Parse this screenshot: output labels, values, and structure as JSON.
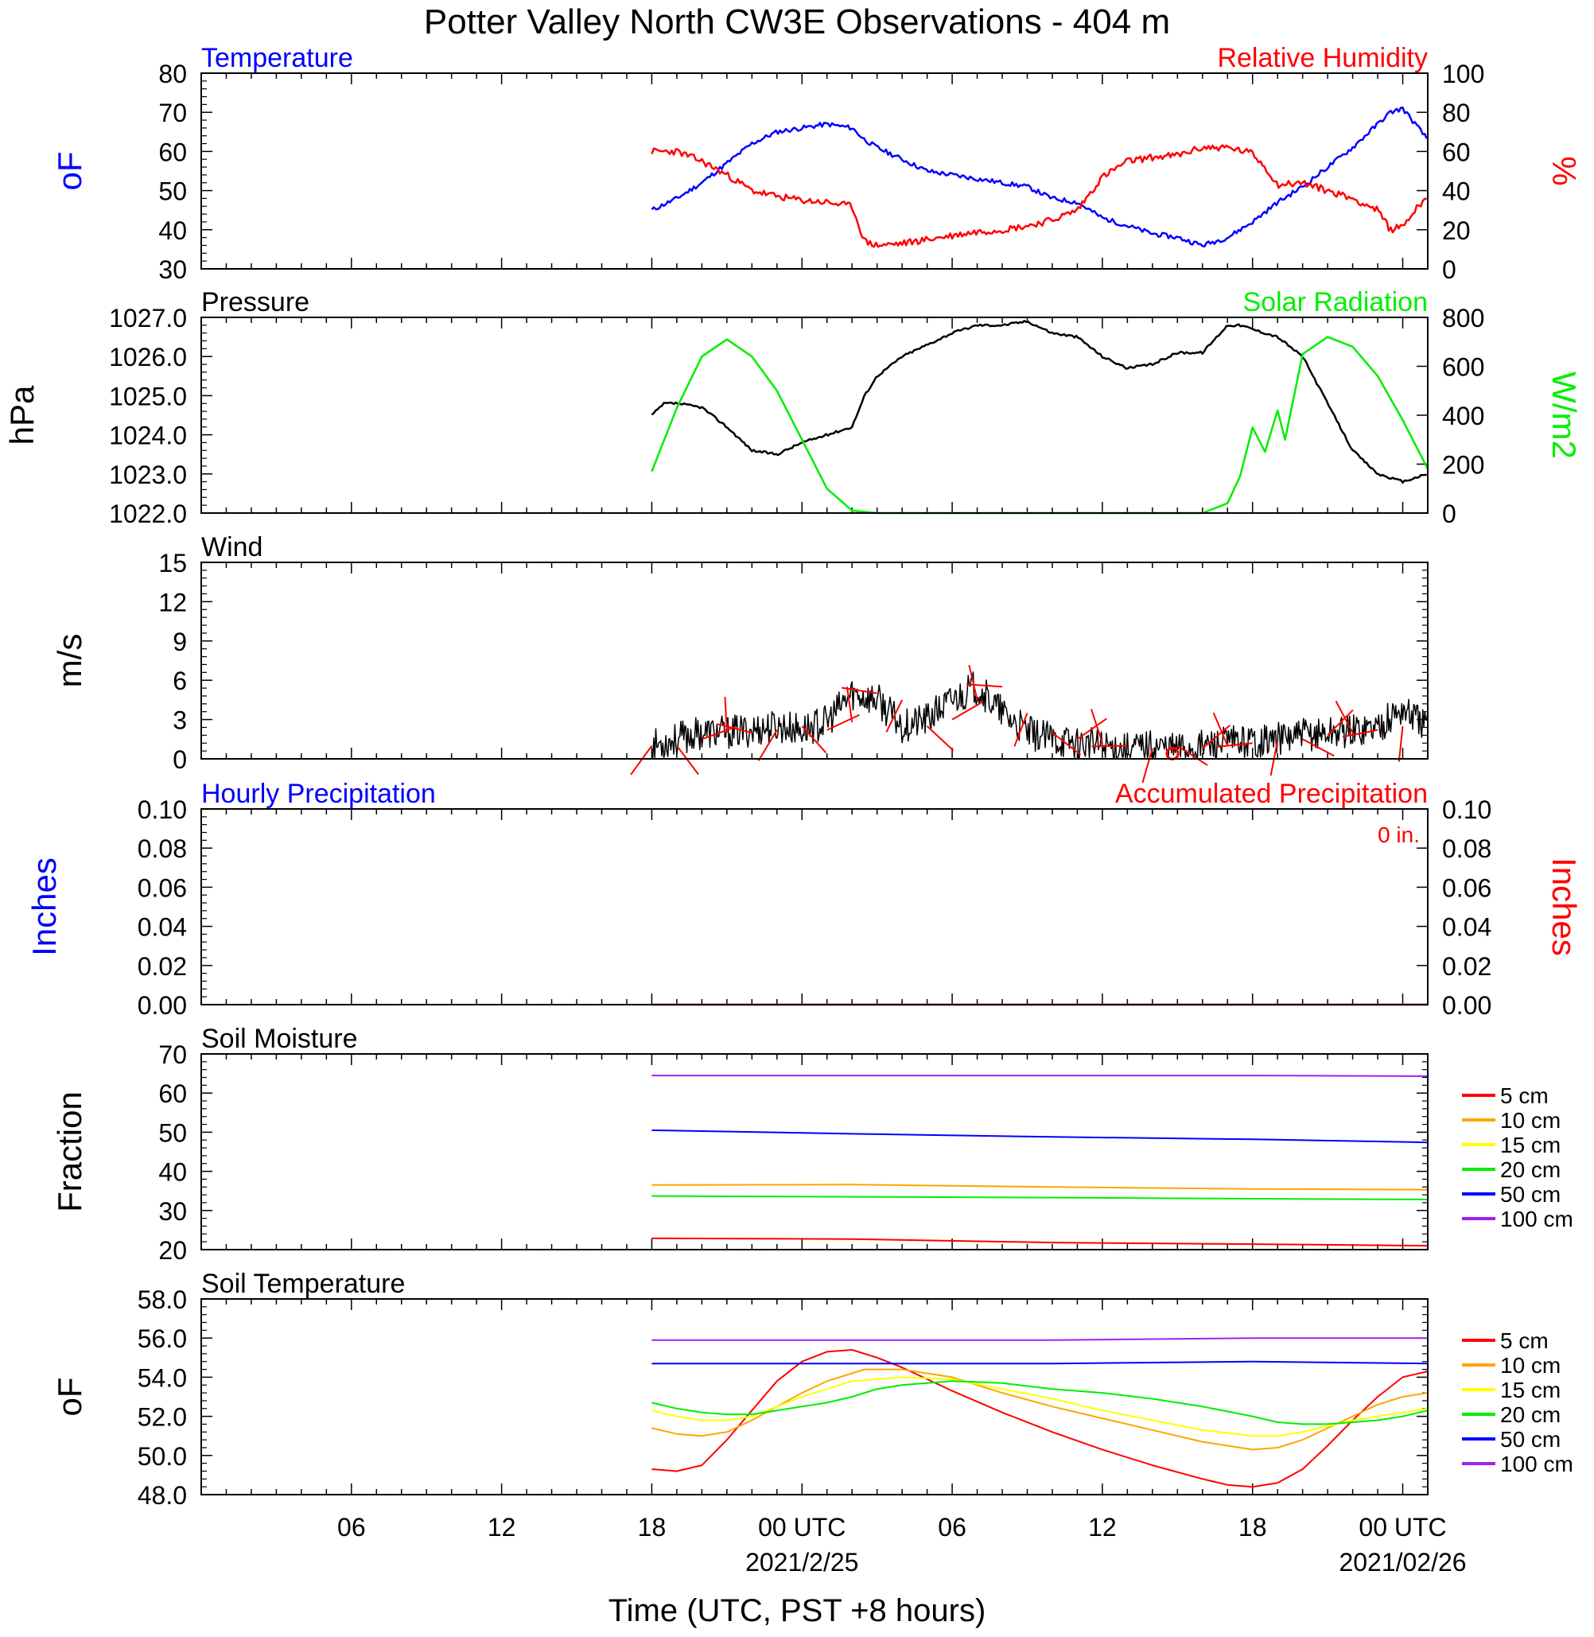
{
  "title": "Potter Valley North CW3E Observations - 404 m",
  "x_axis": {
    "label": "Time (UTC, PST +8 hours)",
    "tick_hours": [
      6,
      12,
      18,
      24,
      30,
      36,
      42,
      48
    ],
    "tick_labels": [
      "06",
      "12",
      "18",
      "00 UTC",
      "06",
      "12",
      "18",
      "00 UTC"
    ],
    "date_labels": [
      {
        "hour": 24,
        "text": "2021/2/25"
      },
      {
        "hour": 48,
        "text": "2021/02/26"
      }
    ],
    "range_hours": [
      0,
      49
    ]
  },
  "colors": {
    "temperature": "#0000ff",
    "humidity": "#ff0000",
    "pressure": "#000000",
    "solar": "#00ee00",
    "wind": "#000000",
    "barb": "#ff0000",
    "hourly_precip": "#0000ff",
    "accum_precip": "#ff0000"
  },
  "depth_colors": [
    "#ff0000",
    "#ffa500",
    "#ffff00",
    "#00ee00",
    "#0000ff",
    "#a020f0"
  ],
  "chart_data": [
    {
      "panel": "temperature_humidity",
      "type": "line",
      "left_title": "Temperature",
      "right_title": "Relative Humidity",
      "ylabel_left": "oF",
      "ylabel_right": "%",
      "ylim_left": [
        30,
        80
      ],
      "ylim_right": [
        0,
        100
      ],
      "yticks_left": [
        "30",
        "40",
        "50",
        "60",
        "70",
        "80"
      ],
      "yticks_right": [
        "0",
        "20",
        "40",
        "60",
        "80",
        "100"
      ],
      "series": [
        {
          "axis": "left",
          "x": [
            18,
            19,
            20,
            21,
            22,
            23,
            24,
            25,
            26,
            26.5,
            27,
            28,
            29,
            30,
            31,
            32,
            33,
            34,
            35,
            36,
            37,
            38,
            39,
            40,
            41,
            42,
            43,
            44,
            45,
            46,
            47,
            47.5,
            48,
            49
          ],
          "values": [
            45,
            48,
            52,
            57,
            62,
            65,
            66,
            67,
            66,
            63,
            61,
            58,
            55,
            54,
            53,
            52,
            51,
            48,
            47,
            43,
            41,
            39,
            38,
            36,
            38,
            42,
            47,
            51,
            56,
            61,
            67,
            70,
            71,
            63
          ]
        },
        {
          "axis": "right",
          "x": [
            18,
            19,
            20,
            21,
            22,
            23,
            24,
            25,
            26,
            26.5,
            27,
            28,
            29,
            30,
            31,
            32,
            33,
            34,
            35,
            36,
            37,
            38,
            39,
            40,
            41,
            42,
            42.5,
            43,
            44,
            45,
            46,
            47,
            47.5,
            48,
            49
          ],
          "values": [
            60,
            60,
            55,
            48,
            40,
            37,
            35,
            34,
            32,
            14,
            12,
            13,
            15,
            17,
            19,
            20,
            22,
            25,
            30,
            47,
            55,
            57,
            58,
            62,
            62,
            59,
            52,
            43,
            44,
            40,
            36,
            30,
            20,
            22,
            38
          ]
        }
      ]
    },
    {
      "panel": "pressure_solar",
      "type": "line",
      "left_title": "Pressure",
      "right_title": "Solar Radiation",
      "ylabel_left": "hPa",
      "ylabel_right": "W/m2",
      "ylim_left": [
        1022,
        1027
      ],
      "ylim_right": [
        0,
        800
      ],
      "yticks_left": [
        "1022.0",
        "1023.0",
        "1024.0",
        "1025.0",
        "1026.0",
        "1027.0"
      ],
      "yticks_right": [
        "0",
        "200",
        "400",
        "600",
        "800"
      ],
      "series": [
        {
          "axis": "left",
          "x": [
            18,
            18.5,
            19,
            20,
            21,
            22,
            23,
            24,
            25,
            26,
            26.5,
            27,
            28,
            29,
            30,
            31,
            32,
            33,
            34,
            35,
            36,
            37,
            38,
            39,
            40,
            41,
            41.5,
            42,
            43,
            44,
            45,
            46,
            47,
            48,
            49
          ],
          "values": [
            1024.5,
            1024.8,
            1024.8,
            1024.7,
            1024.2,
            1023.6,
            1023.5,
            1023.8,
            1024.0,
            1024.2,
            1025.0,
            1025.5,
            1026.0,
            1026.3,
            1026.6,
            1026.8,
            1026.8,
            1026.9,
            1026.6,
            1026.5,
            1026.0,
            1025.7,
            1025.8,
            1026.1,
            1026.1,
            1026.8,
            1026.8,
            1026.7,
            1026.5,
            1026.0,
            1024.8,
            1023.6,
            1023.0,
            1022.8,
            1023.0
          ]
        },
        {
          "axis": "right",
          "x": [
            18,
            19,
            20,
            21,
            22,
            23,
            24,
            25,
            26,
            27,
            27,
            40,
            41,
            41.5,
            42,
            42.5,
            43,
            43.3,
            44,
            45,
            46,
            47,
            48,
            49
          ],
          "values": [
            170,
            430,
            640,
            710,
            640,
            500,
            300,
            100,
            10,
            0,
            0,
            0,
            40,
            150,
            350,
            250,
            420,
            300,
            650,
            720,
            680,
            560,
            380,
            180
          ]
        }
      ]
    },
    {
      "panel": "wind",
      "type": "line",
      "left_title": "Wind",
      "ylabel_left": "m/s",
      "ylim_left": [
        0,
        15
      ],
      "yticks_left": [
        "0",
        "3",
        "6",
        "9",
        "12",
        "15"
      ],
      "series": [
        {
          "axis": "left",
          "x": [
            18,
            19,
            20,
            21,
            22,
            23,
            24,
            25,
            26,
            27,
            28,
            29,
            30,
            31,
            32,
            33,
            34,
            35,
            36,
            37,
            38,
            39,
            40,
            41,
            42,
            43,
            44,
            45,
            46,
            47,
            48,
            49
          ],
          "values": [
            1.0,
            1.5,
            2.0,
            2.0,
            2.2,
            2.5,
            2.2,
            2.8,
            5.0,
            4.5,
            2.5,
            3.0,
            4.5,
            5.5,
            3.5,
            2.0,
            1.5,
            1.2,
            1.0,
            0.8,
            1.0,
            0.8,
            1.0,
            1.2,
            1.4,
            1.5,
            1.8,
            2.0,
            2.2,
            2.5,
            3.8,
            2.5
          ]
        }
      ]
    },
    {
      "panel": "precipitation",
      "type": "line",
      "left_title": "Hourly Precipitation",
      "right_title": "Accumulated Precipitation",
      "accum_total": "0 in.",
      "ylabel_left": "Inches",
      "ylabel_right": "Inches",
      "ylim_left": [
        0,
        0.1
      ],
      "ylim_right": [
        0,
        0.1
      ],
      "yticks_left": [
        "0.00",
        "0.02",
        "0.04",
        "0.06",
        "0.08",
        "0.10"
      ],
      "yticks_right": [
        "0.00",
        "0.02",
        "0.04",
        "0.06",
        "0.08",
        "0.10"
      ],
      "series": [
        {
          "axis": "left",
          "x": [
            18,
            49
          ],
          "values": [
            0,
            0
          ]
        },
        {
          "axis": "right",
          "x": [
            18,
            49
          ],
          "values": [
            0,
            0
          ]
        }
      ]
    },
    {
      "panel": "soil_moisture",
      "type": "line",
      "left_title": "Soil Moisture",
      "ylabel_left": "Fraction",
      "ylim_left": [
        20,
        70
      ],
      "yticks_left": [
        "20",
        "30",
        "40",
        "50",
        "60",
        "70"
      ],
      "legend": [
        "5 cm",
        "10 cm",
        "15 cm",
        "20 cm",
        "50 cm",
        "100 cm"
      ],
      "series": [
        {
          "name": "5 cm",
          "axis": "left",
          "x": [
            18,
            26,
            34,
            42,
            49
          ],
          "values": [
            22.9,
            22.7,
            21.8,
            21.4,
            21.0
          ]
        },
        {
          "name": "10 cm",
          "axis": "left",
          "x": [
            18,
            26,
            34,
            42,
            49
          ],
          "values": [
            36.5,
            36.6,
            36.0,
            35.5,
            35.3
          ]
        },
        {
          "name": "20 cm",
          "axis": "left",
          "x": [
            18,
            26,
            34,
            42,
            49
          ],
          "values": [
            33.7,
            33.5,
            33.3,
            33.0,
            32.8
          ]
        },
        {
          "name": "50 cm",
          "axis": "left",
          "x": [
            18,
            26,
            34,
            42,
            49
          ],
          "values": [
            50.5,
            49.6,
            48.8,
            48.2,
            47.4
          ]
        },
        {
          "name": "100 cm",
          "axis": "left",
          "x": [
            18,
            26,
            34,
            42,
            49
          ],
          "values": [
            64.5,
            64.5,
            64.5,
            64.5,
            64.3
          ]
        }
      ]
    },
    {
      "panel": "soil_temperature",
      "type": "line",
      "left_title": "Soil Temperature",
      "ylabel_left": "oF",
      "ylim_left": [
        48,
        58
      ],
      "yticks_left": [
        "48.0",
        "50.0",
        "52.0",
        "54.0",
        "56.0",
        "58.0"
      ],
      "legend": [
        "5 cm",
        "10 cm",
        "15 cm",
        "20 cm",
        "50 cm",
        "100 cm"
      ],
      "series": [
        {
          "name": "5 cm",
          "axis": "left",
          "x": [
            18,
            19,
            20,
            21,
            22,
            23,
            24,
            25,
            26,
            27,
            28,
            30,
            32,
            34,
            36,
            38,
            40,
            41,
            42,
            43,
            44,
            45,
            46,
            47,
            48,
            49
          ],
          "values": [
            49.3,
            49.2,
            49.5,
            50.8,
            52.3,
            53.8,
            54.8,
            55.3,
            55.4,
            55.0,
            54.5,
            53.3,
            52.2,
            51.2,
            50.3,
            49.5,
            48.8,
            48.5,
            48.4,
            48.6,
            49.3,
            50.5,
            51.8,
            53.0,
            54.0,
            54.3
          ]
        },
        {
          "name": "10 cm",
          "axis": "left",
          "x": [
            18,
            19,
            20,
            21,
            22,
            23,
            24,
            25,
            26,
            26.5,
            27,
            28,
            30,
            32,
            34,
            36,
            38,
            40,
            42,
            43,
            44,
            45,
            46,
            47,
            48,
            49
          ],
          "values": [
            51.4,
            51.1,
            51.0,
            51.2,
            51.8,
            52.5,
            53.2,
            53.8,
            54.2,
            54.4,
            54.4,
            54.4,
            54.0,
            53.2,
            52.5,
            51.9,
            51.3,
            50.7,
            50.3,
            50.4,
            50.8,
            51.4,
            52.0,
            52.6,
            53.0,
            53.2
          ]
        },
        {
          "name": "15 cm",
          "axis": "left",
          "x": [
            18,
            19,
            20,
            21,
            22,
            23,
            24,
            25,
            26,
            27,
            28,
            30,
            32,
            34,
            36,
            38,
            40,
            42,
            43,
            44,
            45,
            46,
            47,
            48,
            49
          ],
          "values": [
            52.3,
            52.0,
            51.8,
            51.8,
            52.0,
            52.5,
            53.0,
            53.4,
            53.8,
            53.9,
            54.0,
            53.9,
            53.4,
            52.9,
            52.3,
            51.8,
            51.3,
            51.0,
            51.0,
            51.2,
            51.5,
            51.8,
            52.0,
            52.2,
            52.4
          ]
        },
        {
          "name": "20 cm",
          "axis": "left",
          "x": [
            18,
            19,
            20,
            21,
            22,
            23,
            24,
            25,
            26,
            27,
            28,
            30,
            32,
            34,
            36,
            38,
            40,
            42,
            43,
            44,
            45,
            46,
            47,
            48,
            49
          ],
          "values": [
            52.7,
            52.4,
            52.2,
            52.1,
            52.1,
            52.3,
            52.5,
            52.7,
            53.0,
            53.4,
            53.6,
            53.8,
            53.7,
            53.4,
            53.2,
            52.9,
            52.5,
            52.0,
            51.7,
            51.6,
            51.6,
            51.7,
            51.8,
            52.0,
            52.3
          ]
        },
        {
          "name": "50 cm",
          "axis": "left",
          "x": [
            18,
            26,
            34,
            42,
            49
          ],
          "values": [
            54.7,
            54.7,
            54.7,
            54.8,
            54.7
          ]
        },
        {
          "name": "100 cm",
          "axis": "left",
          "x": [
            18,
            26,
            34,
            42,
            49
          ],
          "values": [
            55.9,
            55.9,
            55.9,
            56.0,
            56.0
          ]
        }
      ]
    }
  ]
}
